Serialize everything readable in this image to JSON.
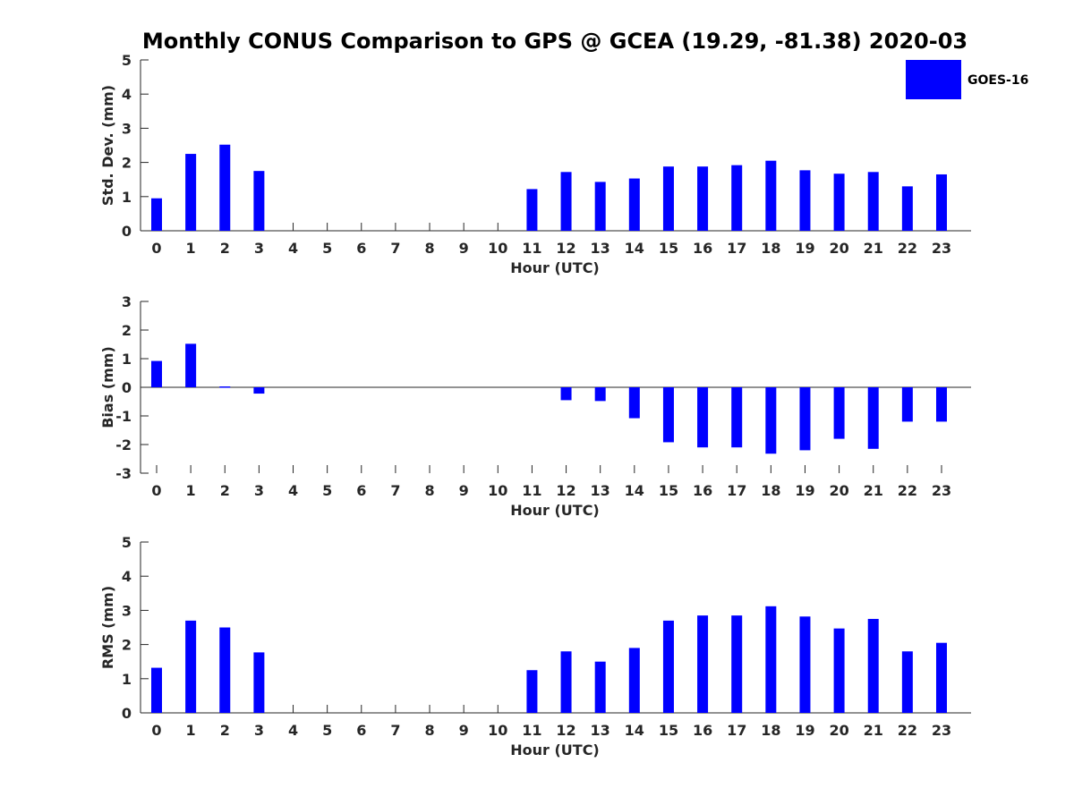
{
  "chart_data": {
    "title": "Monthly CONUS Comparison to GPS @ GCEA (19.29, -81.38) 2020-03",
    "type": "bar",
    "legend": {
      "label": "GOES-16",
      "color": "#0000ff",
      "placement": "top-right"
    },
    "categories": [
      "0",
      "1",
      "2",
      "3",
      "4",
      "5",
      "6",
      "7",
      "8",
      "9",
      "10",
      "11",
      "12",
      "13",
      "14",
      "15",
      "16",
      "17",
      "18",
      "19",
      "20",
      "21",
      "22",
      "23"
    ],
    "panels": [
      {
        "name": "std-dev",
        "ylabel": "Std. Dev. (mm)",
        "xlabel": "Hour (UTC)",
        "ylim": [
          0,
          5
        ],
        "yticks": [
          "0",
          "1",
          "2",
          "3",
          "4",
          "5"
        ],
        "values": [
          0.95,
          2.25,
          2.52,
          1.75,
          0,
          0,
          0,
          0,
          0,
          0,
          0,
          1.22,
          1.72,
          1.43,
          1.53,
          1.88,
          1.88,
          1.92,
          2.05,
          1.77,
          1.67,
          1.72,
          1.3,
          1.65
        ]
      },
      {
        "name": "bias",
        "ylabel": "Bias (mm)",
        "xlabel": "Hour (UTC)",
        "ylim": [
          -3,
          3
        ],
        "yticks": [
          "-3",
          "-2",
          "-1",
          "0",
          "1",
          "2",
          "3"
        ],
        "values": [
          0.92,
          1.52,
          0.03,
          -0.22,
          0,
          0,
          0,
          0,
          0,
          0,
          0,
          0,
          -0.45,
          -0.48,
          -1.08,
          -1.92,
          -2.1,
          -2.1,
          -2.32,
          -2.2,
          -1.8,
          -2.15,
          -1.2,
          -1.2
        ]
      },
      {
        "name": "rms",
        "ylabel": "RMS (mm)",
        "xlabel": "Hour (UTC)",
        "ylim": [
          0,
          5
        ],
        "yticks": [
          "0",
          "1",
          "2",
          "3",
          "4",
          "5"
        ],
        "values": [
          1.32,
          2.7,
          2.5,
          1.77,
          0,
          0,
          0,
          0,
          0,
          0,
          0,
          1.25,
          1.8,
          1.5,
          1.9,
          2.7,
          2.85,
          2.85,
          3.12,
          2.82,
          2.47,
          2.75,
          1.8,
          2.05
        ]
      }
    ]
  }
}
